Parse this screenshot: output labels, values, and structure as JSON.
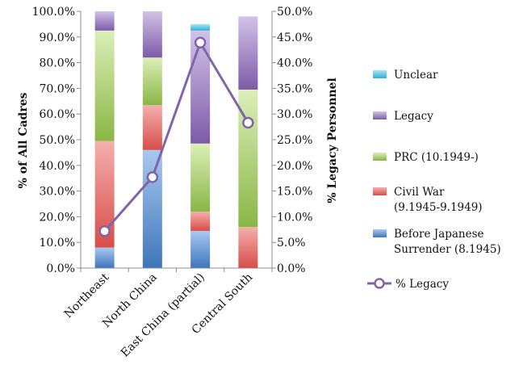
{
  "chart_data": {
    "type": "bar",
    "stacked": true,
    "categories": [
      "Northeast",
      "North China",
      "East China (partial)",
      "Central South"
    ],
    "y_left": {
      "label": "% of All Cadres",
      "range": [
        0,
        100
      ],
      "ticks": [
        "0.0%",
        "10.0%",
        "20.0%",
        "30.0%",
        "40.0%",
        "50.0%",
        "60.0%",
        "70.0%",
        "80.0%",
        "90.0%",
        "100.0%"
      ]
    },
    "y_right": {
      "label": "% Legacy Personnel",
      "range": [
        0,
        50
      ],
      "ticks": [
        "0.0%",
        "5.0%",
        "10.0%",
        "15.0%",
        "20.0%",
        "25.0%",
        "30.0%",
        "35.0%",
        "40.0%",
        "45.0%",
        "50.0%"
      ]
    },
    "bar_series": [
      {
        "name": "Before Japanese Surrender (8.1945)",
        "label_lines": [
          "Before Japanese",
          "Surrender (8.1945)"
        ],
        "color": "#4f81bd",
        "values": [
          8,
          46,
          14.5,
          0
        ]
      },
      {
        "name": "Civil War (9.1945-9.1949)",
        "label_lines": [
          "Civil War",
          "(9.1945-9.1949)"
        ],
        "color": "#e0605c",
        "values": [
          41.5,
          17.5,
          7.5,
          16
        ]
      },
      {
        "name": "PRC (10.1949-)",
        "label_lines": [
          "PRC (10.1949-)"
        ],
        "color": "#9bc453",
        "values": [
          43,
          18.5,
          26.5,
          53.5
        ]
      },
      {
        "name": "Legacy",
        "label_lines": [
          "Legacy"
        ],
        "color": "#8f6fb8",
        "values": [
          7.5,
          18,
          44,
          28.5
        ]
      },
      {
        "name": "Unclear",
        "label_lines": [
          "Unclear"
        ],
        "color": "#3fb8d8",
        "values": [
          0,
          0,
          2.5,
          0
        ]
      }
    ],
    "line_series": {
      "name": "% Legacy",
      "label_lines": [
        "% Legacy"
      ],
      "axis": "right",
      "color": "#8066a8",
      "values": [
        7.2,
        17.7,
        43.9,
        28.3
      ]
    },
    "legend": "right",
    "grid": false
  }
}
